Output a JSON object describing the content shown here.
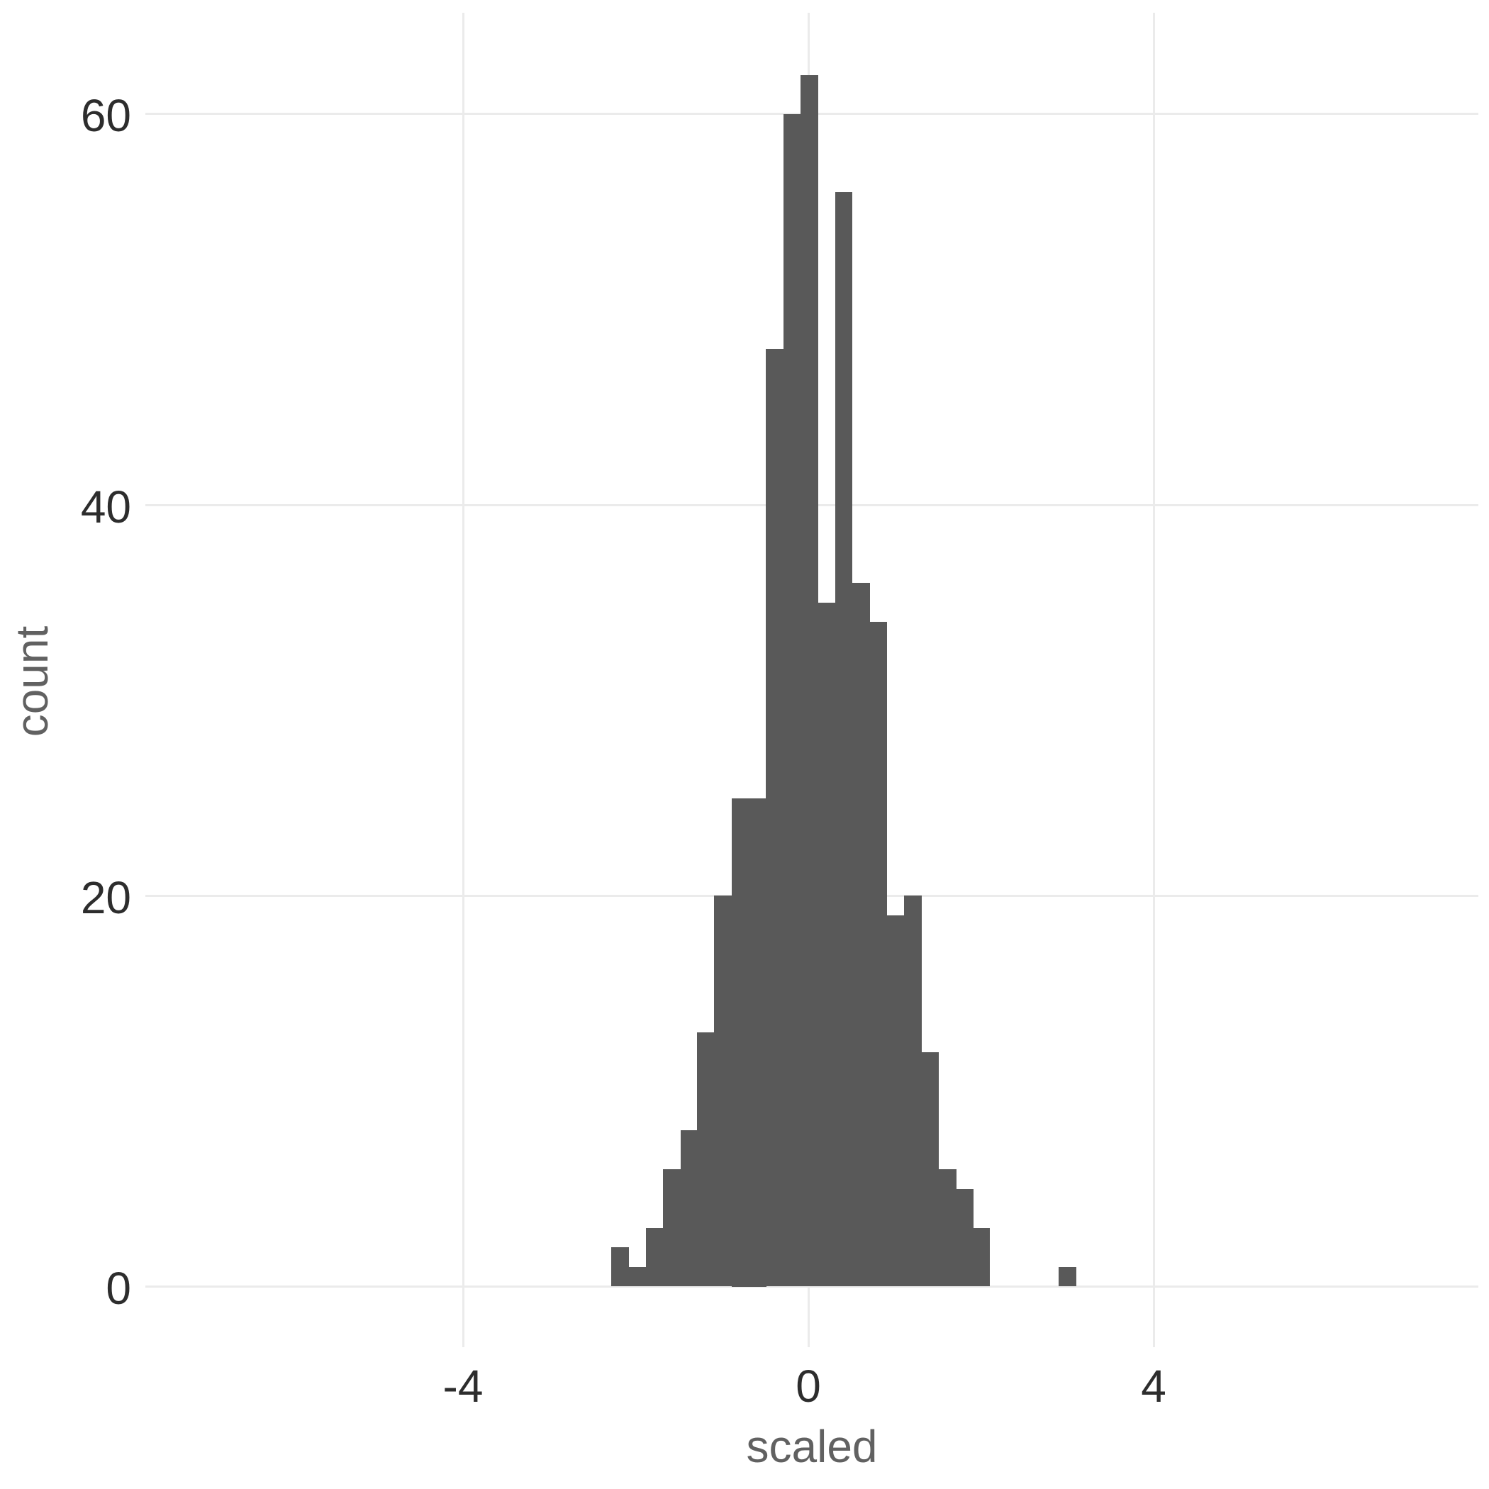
{
  "figure": {
    "background_color": "#FFFFFF",
    "style": "ggplot theme_minimal histogram: white background, light gray major gridlines, no axis lines, no tick marks, no legend, no title"
  },
  "chart_data": {
    "type": "bar",
    "subtype": "histogram",
    "title": "",
    "xlabel": "scaled",
    "ylabel": "count",
    "legend_position": "none",
    "grid": "major-only",
    "bar_color": "#595959",
    "gridline_color": "#EBEBEB",
    "tick_label_color": "#2D2D2D",
    "axis_title_color": "#616161",
    "x_ticks": [
      {
        "value": -4,
        "label": "-4"
      },
      {
        "value": 0,
        "label": "0"
      },
      {
        "value": 4,
        "label": "4"
      }
    ],
    "y_ticks": [
      {
        "value": 0,
        "label": "0"
      },
      {
        "value": 20,
        "label": "20"
      },
      {
        "value": 40,
        "label": "40"
      },
      {
        "value": 60,
        "label": "60"
      }
    ],
    "xlim": [
      -7.7,
      7.8
    ],
    "ylim": [
      0,
      65
    ],
    "binwidth": 0.2,
    "total_count": 500,
    "bins": [
      {
        "center": -2.18,
        "count": 2
      },
      {
        "center": -1.98,
        "count": 1
      },
      {
        "center": -1.78,
        "count": 3
      },
      {
        "center": -1.58,
        "count": 6
      },
      {
        "center": -1.38,
        "count": 8
      },
      {
        "center": -1.19,
        "count": 13
      },
      {
        "center": -0.99,
        "count": 20
      },
      {
        "center": -0.79,
        "count": 25
      },
      {
        "center": -0.59,
        "count": 25
      },
      {
        "center": -0.39,
        "count": 48
      },
      {
        "center": -0.19,
        "count": 60
      },
      {
        "center": 0.01,
        "count": 62
      },
      {
        "center": 0.21,
        "count": 35
      },
      {
        "center": 0.41,
        "count": 56
      },
      {
        "center": 0.61,
        "count": 36
      },
      {
        "center": 0.81,
        "count": 34
      },
      {
        "center": 1.01,
        "count": 19
      },
      {
        "center": 1.21,
        "count": 20
      },
      {
        "center": 1.41,
        "count": 12
      },
      {
        "center": 1.61,
        "count": 6
      },
      {
        "center": 1.81,
        "count": 5
      },
      {
        "center": 2.0,
        "count": 3
      },
      {
        "center": 2.2,
        "count": 0
      },
      {
        "center": 2.4,
        "count": 0
      },
      {
        "center": 2.6,
        "count": 0
      },
      {
        "center": 2.8,
        "count": 0
      },
      {
        "center": 3.0,
        "count": 1
      }
    ]
  }
}
